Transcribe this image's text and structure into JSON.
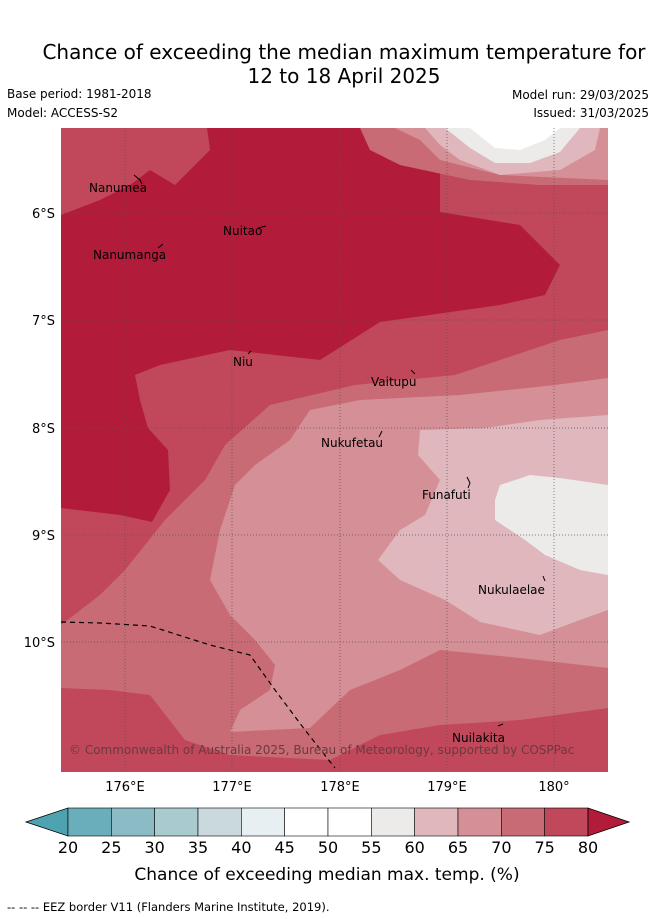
{
  "title_line1": "Chance of exceeding the median maximum temperature for",
  "title_line2": "12 to 18 April 2025",
  "base_period": "Base period: 1981-2018",
  "model": "Model: ACCESS-S2",
  "model_run": "Model run: 29/03/2025",
  "issued": "Issued: 31/03/2025",
  "places": [
    "Nanumea",
    "Nuitao",
    "Nanumanga",
    "Niu",
    "Vaitupu",
    "Nukufetau",
    "Funafuti",
    "Nukulaelae",
    "Nuilakita"
  ],
  "lat_labels": [
    "6°S",
    "7°S",
    "8°S",
    "9°S",
    "10°S"
  ],
  "lon_labels": [
    "176°E",
    "177°E",
    "178°E",
    "179°E",
    "180°"
  ],
  "copyright": "© Commonwealth of Australia 2025, Bureau of Meteorology, supported by COSPPac",
  "colorbar": {
    "ticks": [
      "20",
      "25",
      "30",
      "35",
      "40",
      "45",
      "50",
      "55",
      "60",
      "65",
      "70",
      "75",
      "80"
    ],
    "colors": [
      "#4fa3b0",
      "#6aaebb",
      "#8bbcc6",
      "#a9cbcf",
      "#c9d9de",
      "#e8eff2",
      "#ffffff",
      "#ffffff",
      "#ecebea",
      "#dfb7bc",
      "#d58f96",
      "#c96b75",
      "#c0485a",
      "#b21c3a"
    ],
    "label": "Chance of exceeding median max. temp. (%)"
  },
  "eez_note": "-- -- -- EEZ border V11 (Flanders Marine Institute, 2019)."
}
